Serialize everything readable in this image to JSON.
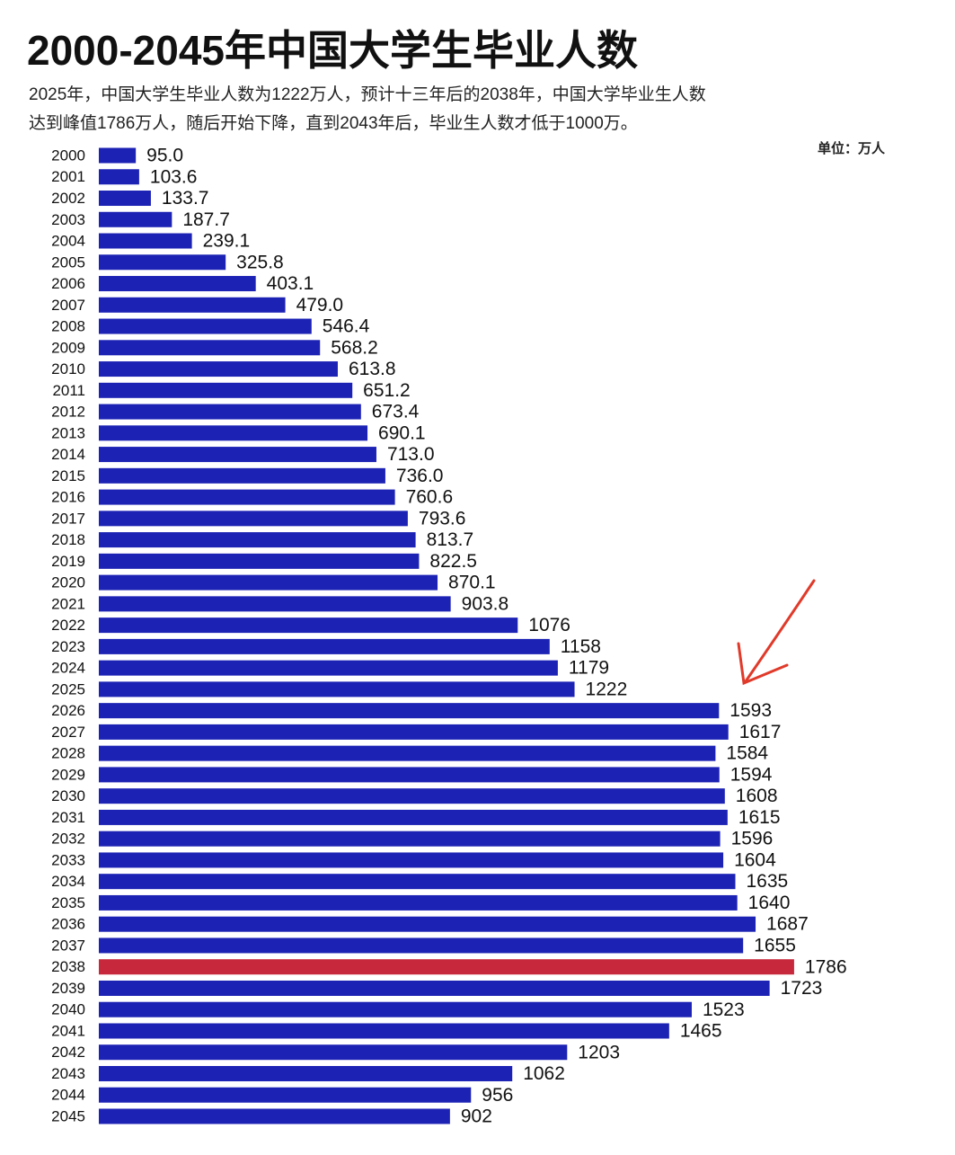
{
  "chart_data": {
    "type": "hbar",
    "title": "2000-2045年中国大学生毕业人数",
    "subtitle": [
      "2025年，中国大学生毕业人数为1222万人，预计十三年后的2038年，中国大学毕业生人数",
      "达到峰值1786万人，随后开始下降，直到2043年后，毕业生人数才低于1000万。"
    ],
    "unit": "单位：万人",
    "categories": [
      "2000",
      "2001",
      "2002",
      "2003",
      "2004",
      "2005",
      "2006",
      "2007",
      "2008",
      "2009",
      "2010",
      "2011",
      "2012",
      "2013",
      "2014",
      "2015",
      "2016",
      "2017",
      "2018",
      "2019",
      "2020",
      "2021",
      "2022",
      "2023",
      "2024",
      "2025",
      "2026",
      "2027",
      "2028",
      "2029",
      "2030",
      "2031",
      "2032",
      "2033",
      "2034",
      "2035",
      "2036",
      "2037",
      "2038",
      "2039",
      "2040",
      "2041",
      "2042",
      "2043",
      "2044",
      "2045"
    ],
    "values": [
      95.0,
      103.6,
      133.7,
      187.7,
      239.1,
      325.8,
      403.1,
      479.0,
      546.4,
      568.2,
      613.8,
      651.2,
      673.4,
      690.1,
      713.0,
      736.0,
      760.6,
      793.6,
      813.7,
      822.5,
      870.1,
      903.8,
      1076,
      1158,
      1179,
      1222,
      1593,
      1617,
      1584,
      1594,
      1608,
      1615,
      1596,
      1604,
      1635,
      1640,
      1687,
      1655,
      1786,
      1723,
      1523,
      1465,
      1203,
      1062,
      956,
      902
    ],
    "value_labels": [
      "95.0",
      "103.6",
      "133.7",
      "187.7",
      "239.1",
      "325.8",
      "403.1",
      "479.0",
      "546.4",
      "568.2",
      "613.8",
      "651.2",
      "673.4",
      "690.1",
      "713.0",
      "736.0",
      "760.6",
      "793.6",
      "813.7",
      "822.5",
      "870.1",
      "903.8",
      "1076",
      "1158",
      "1179",
      "1222",
      "1593",
      "1617",
      "1584",
      "1594",
      "1608",
      "1615",
      "1596",
      "1604",
      "1635",
      "1640",
      "1687",
      "1655",
      "1786",
      "1723",
      "1523",
      "1465",
      "1203",
      "1062",
      "956",
      "902"
    ],
    "color": "#1c22b4",
    "highlight_index": 38,
    "highlight_color": "#c8283c",
    "xlim": [
      0,
      1800
    ]
  }
}
